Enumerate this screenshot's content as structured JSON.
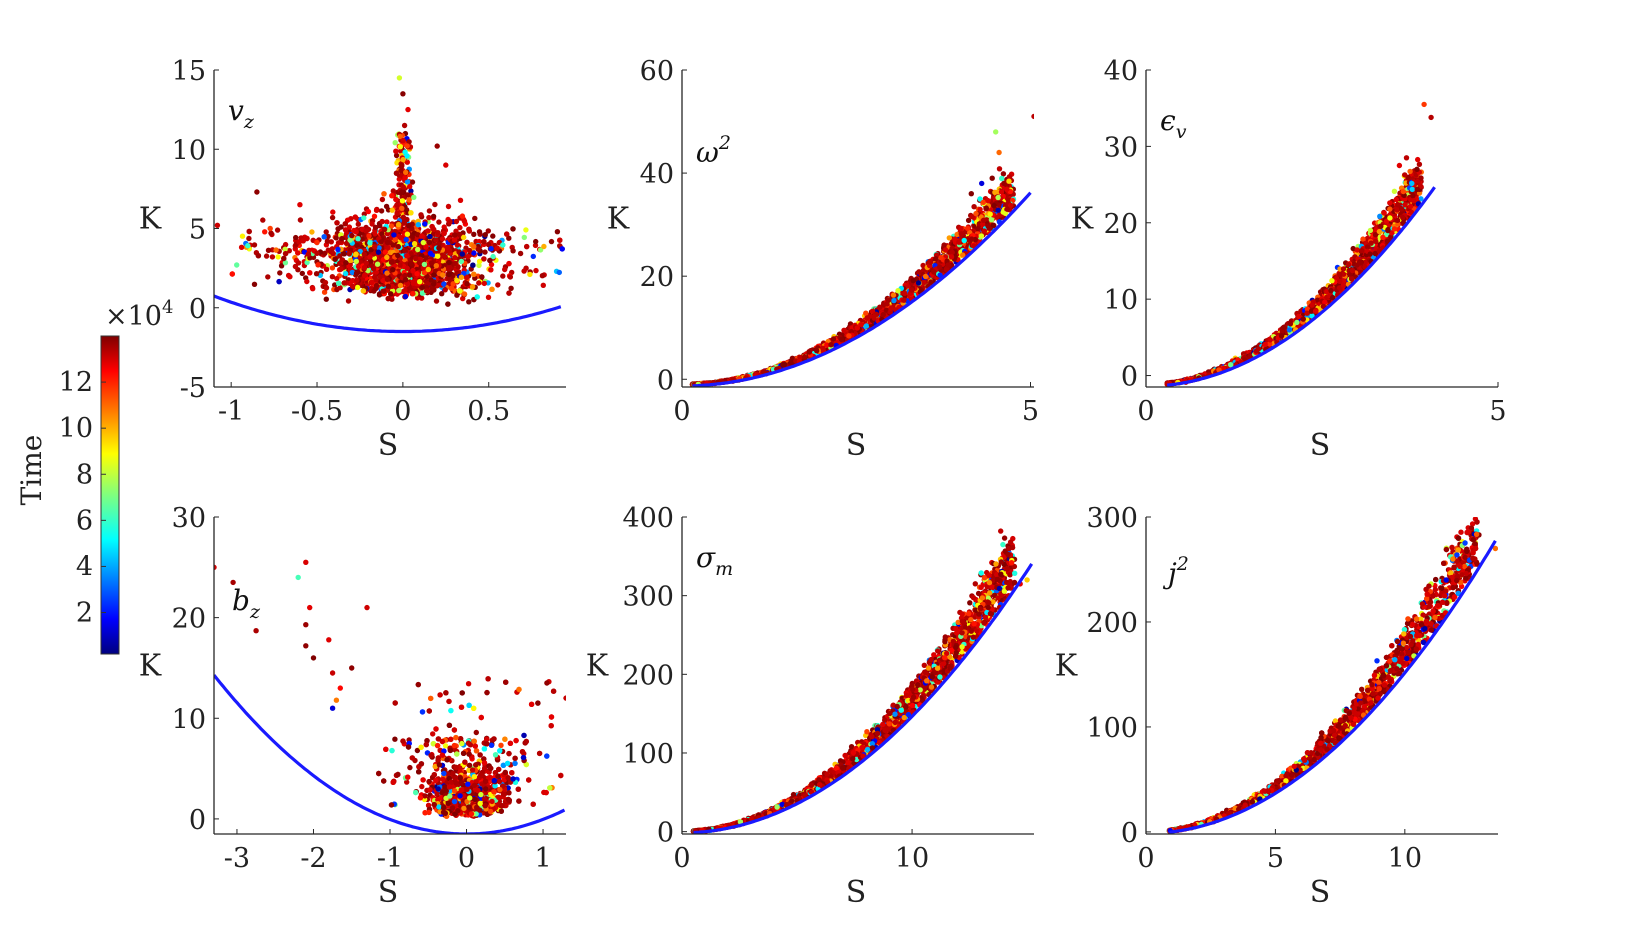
{
  "colors": {
    "fit_curve": "#1a1aff",
    "axis": "#262626",
    "colormap": [
      "#00007f",
      "#0000ff",
      "#007fff",
      "#00ffff",
      "#7fff7f",
      "#ffff00",
      "#ff7f00",
      "#ff0000",
      "#7f0000"
    ]
  },
  "colorbar": {
    "title": "Time",
    "exponent_label": "×10",
    "exponent_power": "4",
    "range": [
      0.2,
      14
    ],
    "ticks": [
      2,
      4,
      6,
      8,
      10,
      12
    ],
    "tick_labels": [
      "2",
      "4",
      "6",
      "8",
      "10",
      "12"
    ]
  },
  "chart_data": [
    {
      "type": "scatter",
      "panel": "top-left",
      "label_base": "v",
      "label_sub": "z",
      "label_sup": "",
      "xlabel": "S",
      "ylabel": "K",
      "xlim": [
        -1.1,
        0.95
      ],
      "ylim": [
        -5,
        15
      ],
      "xticks": [
        -1,
        -0.5,
        0,
        0.5
      ],
      "xtick_labels": [
        "-1",
        "-0.5",
        "0",
        "0.5"
      ],
      "yticks": [
        -5,
        0,
        5,
        10,
        15
      ],
      "ytick_labels": [
        "-5",
        "0",
        "5",
        "10",
        "15"
      ],
      "fit_curve": {
        "form": "K = a*S^2 + b",
        "a": 1.85,
        "b": -1.5,
        "x_range": [
          -1.1,
          0.92
        ]
      },
      "cloud_shape": "symmetric-peak",
      "outliers": [
        [
          -0.02,
          14.5
        ],
        [
          0.0,
          13.5
        ],
        [
          0.03,
          12.5
        ],
        [
          0.01,
          11.5
        ],
        [
          -0.85,
          7.3
        ],
        [
          -0.6,
          6.5
        ],
        [
          0.2,
          10.2
        ],
        [
          0.25,
          9.0
        ],
        [
          0.9,
          4.8
        ],
        [
          -1.08,
          5.2
        ]
      ]
    },
    {
      "type": "scatter",
      "panel": "top-middle",
      "label_base": "ω",
      "label_sub": "",
      "label_sup": "2",
      "xlabel": "S",
      "ylabel": "K",
      "xlim": [
        0,
        5.05
      ],
      "ylim": [
        -1.5,
        60
      ],
      "xticks": [
        0,
        5
      ],
      "xtick_labels": [
        "0",
        "5"
      ],
      "yticks": [
        0,
        20,
        40,
        60
      ],
      "ytick_labels": [
        "0",
        "20",
        "40",
        "60"
      ],
      "fit_curve": {
        "form": "K = a*S^2 + b",
        "a": 1.5,
        "b": -1.3,
        "x_range": [
          0.15,
          5.0
        ]
      },
      "cloud_shape": "parabolic-band",
      "outliers": [
        [
          4.5,
          48
        ],
        [
          5.05,
          51
        ],
        [
          4.55,
          44
        ],
        [
          4.45,
          39
        ],
        [
          4.3,
          38
        ],
        [
          4.15,
          36
        ]
      ]
    },
    {
      "type": "scatter",
      "panel": "top-right",
      "label_base": "ϵ",
      "label_sub": "v",
      "label_sup": "",
      "xlabel": "S",
      "ylabel": "K",
      "xlim": [
        0,
        5
      ],
      "ylim": [
        -1.5,
        40
      ],
      "xticks": [
        0,
        5
      ],
      "xtick_labels": [
        "0",
        "5"
      ],
      "yticks": [
        0,
        10,
        20,
        30,
        40
      ],
      "ytick_labels": [
        "0",
        "10",
        "20",
        "30",
        "40"
      ],
      "fit_curve": {
        "form": "K = a*S^2 + b",
        "a": 1.55,
        "b": -1.4,
        "x_range": [
          0.3,
          4.1
        ]
      },
      "cloud_shape": "parabolic-band",
      "outliers": [
        [
          3.95,
          35.5
        ],
        [
          4.05,
          33.8
        ],
        [
          3.7,
          28.5
        ],
        [
          3.6,
          27.5
        ],
        [
          3.85,
          27
        ]
      ]
    },
    {
      "type": "scatter",
      "panel": "bottom-left",
      "label_base": "b",
      "label_sub": "z",
      "label_sup": "",
      "xlabel": "S",
      "ylabel": "K",
      "xlim": [
        -3.3,
        1.3
      ],
      "ylim": [
        -1.5,
        30
      ],
      "xticks": [
        -3,
        -2,
        -1,
        0,
        1
      ],
      "xtick_labels": [
        "-3",
        "-2",
        "-1",
        "0",
        "1"
      ],
      "yticks": [
        0,
        10,
        20,
        30
      ],
      "ytick_labels": [
        "0",
        "10",
        "20",
        "30"
      ],
      "fit_curve": {
        "form": "K = a*S^2 + b",
        "a": 1.45,
        "b": -1.5,
        "x_range": [
          -3.3,
          1.28
        ]
      },
      "cloud_shape": "bottom-blob",
      "outliers": [
        [
          -3.3,
          25
        ],
        [
          -3.05,
          23.5
        ],
        [
          -2.75,
          18.7
        ],
        [
          -2.2,
          24
        ],
        [
          -2.1,
          25.5
        ],
        [
          -2.05,
          21
        ],
        [
          -2.1,
          19.3
        ],
        [
          -2.1,
          17.2
        ],
        [
          -1.8,
          17.8
        ],
        [
          -2.0,
          16
        ],
        [
          -1.75,
          14.5
        ],
        [
          -1.65,
          13
        ],
        [
          -1.7,
          11.8
        ],
        [
          -1.75,
          11
        ],
        [
          -1.3,
          21
        ],
        [
          -1.5,
          15
        ],
        [
          1.05,
          13.5
        ],
        [
          1.3,
          12
        ]
      ]
    },
    {
      "type": "scatter",
      "panel": "bottom-middle",
      "label_base": "σ",
      "label_sub": "m",
      "label_sup": "",
      "xlabel": "S",
      "ylabel": "K",
      "xlim": [
        0,
        15.3
      ],
      "ylim": [
        -3,
        400
      ],
      "xticks": [
        0,
        10
      ],
      "xtick_labels": [
        "0",
        "10"
      ],
      "yticks": [
        0,
        100,
        200,
        300,
        400
      ],
      "ytick_labels": [
        "0",
        "100",
        "200",
        "300",
        "400"
      ],
      "fit_curve": {
        "form": "K = a*S^2 + b",
        "a": 1.48,
        "b": -1.5,
        "x_range": [
          0.5,
          15.2
        ]
      },
      "cloud_shape": "parabolic-band",
      "outliers": [
        [
          15.0,
          320
        ],
        [
          14.7,
          315
        ],
        [
          14.2,
          300
        ],
        [
          13.8,
          285
        ]
      ]
    },
    {
      "type": "scatter",
      "panel": "bottom-right",
      "label_base": "j",
      "label_sub": "",
      "label_sup": "2",
      "xlabel": "S",
      "ylabel": "K",
      "xlim": [
        0,
        13.6
      ],
      "ylim": [
        -2,
        300
      ],
      "xticks": [
        0,
        5,
        10
      ],
      "xtick_labels": [
        "0",
        "5",
        "10"
      ],
      "yticks": [
        0,
        100,
        200,
        300
      ],
      "ytick_labels": [
        "0",
        "100",
        "200",
        "300"
      ],
      "fit_curve": {
        "form": "K = a*S^2 + b",
        "a": 1.53,
        "b": -1.5,
        "x_range": [
          0.9,
          13.5
        ]
      },
      "cloud_shape": "parabolic-band",
      "outliers": [
        [
          13.5,
          270
        ],
        [
          12.8,
          255
        ],
        [
          12.2,
          245
        ],
        [
          11.6,
          240
        ]
      ]
    }
  ]
}
